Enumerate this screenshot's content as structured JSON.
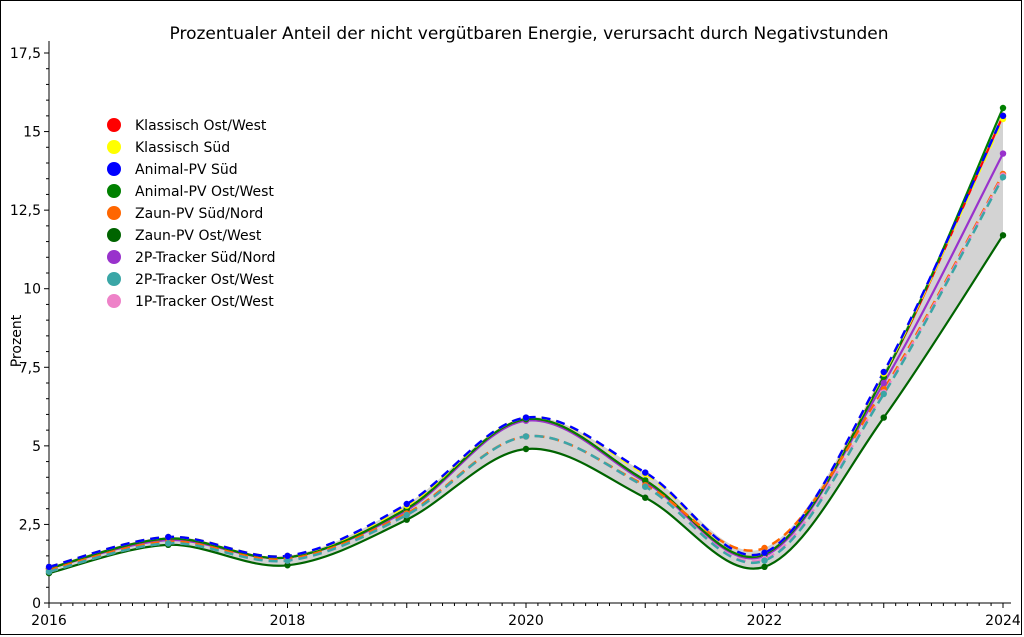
{
  "chart_data": {
    "type": "line",
    "title": "Prozentualer Anteil der nicht vergütbaren Energie, verursacht durch Negativstunden",
    "xlabel": "",
    "ylabel": "Prozent",
    "xlim": [
      2016,
      2024
    ],
    "ylim": [
      0,
      17.5
    ],
    "x_ticks": [
      "2016",
      "2018",
      "2020",
      "2022",
      "2024"
    ],
    "y_ticks": [
      "0",
      "2,5",
      "5",
      "7,5",
      "10",
      "12,5",
      "15",
      "17,5"
    ],
    "grid": false,
    "legend_position": "top-left",
    "band_color": "#d3d3d3",
    "x": [
      2016,
      2017,
      2018,
      2019,
      2020,
      2021,
      2022,
      2023,
      2024
    ],
    "series": [
      {
        "name": "Klassisch Ost/West",
        "color": "#ff0000",
        "dash": false,
        "values": [
          1.1,
          2.05,
          1.45,
          3.0,
          5.85,
          3.9,
          1.55,
          7.2,
          15.5
        ]
      },
      {
        "name": "Klassisch Süd",
        "color": "#ffff00",
        "dash": true,
        "values": [
          1.15,
          2.1,
          1.5,
          3.1,
          5.9,
          4.1,
          1.6,
          7.3,
          15.4
        ]
      },
      {
        "name": "Animal-PV Süd",
        "color": "#0000ff",
        "dash": true,
        "values": [
          1.15,
          2.1,
          1.5,
          3.15,
          5.9,
          4.15,
          1.6,
          7.35,
          15.5
        ]
      },
      {
        "name": "Animal-PV Ost/West",
        "color": "#008000",
        "dash": false,
        "values": [
          1.1,
          2.05,
          1.45,
          3.0,
          5.85,
          3.9,
          1.55,
          7.2,
          15.75
        ]
      },
      {
        "name": "Zaun-PV Süd/Nord",
        "color": "#ff6600",
        "dash": true,
        "values": [
          1.05,
          1.95,
          1.4,
          2.85,
          5.3,
          3.75,
          1.75,
          6.8,
          13.65
        ]
      },
      {
        "name": "Zaun-PV Ost/West",
        "color": "#006400",
        "dash": false,
        "values": [
          0.95,
          1.85,
          1.2,
          2.65,
          4.9,
          3.35,
          1.15,
          5.9,
          11.7
        ]
      },
      {
        "name": "2P-Tracker Süd/Nord",
        "color": "#9932cc",
        "dash": false,
        "values": [
          1.1,
          2.0,
          1.45,
          2.95,
          5.8,
          3.85,
          1.5,
          7.0,
          14.3
        ]
      },
      {
        "name": "2P-Tracker Ost/West",
        "color": "#3aa6a6",
        "dash": true,
        "values": [
          1.0,
          1.9,
          1.35,
          2.8,
          5.3,
          3.7,
          1.35,
          6.65,
          13.55
        ]
      },
      {
        "name": "1P-Tracker Ost/West",
        "color": "#ee82c8",
        "dash": true,
        "values": [
          1.0,
          1.9,
          1.35,
          2.8,
          5.3,
          3.7,
          1.4,
          6.7,
          13.6
        ]
      }
    ]
  }
}
